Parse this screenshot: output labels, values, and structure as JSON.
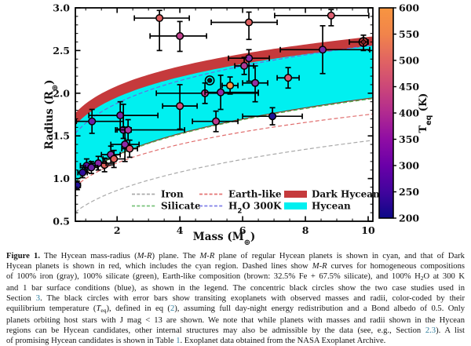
{
  "page": {
    "background": "#ffffff"
  },
  "figure": {
    "caption_link_color": "#2e7e9e",
    "caption_lines": [
      [
        {
          "t": "Figure 1.",
          "s": "b"
        },
        {
          "t": "  The Hycean mass-radius (",
          "s": "n"
        },
        {
          "t": "M",
          "s": "i"
        },
        {
          "t": "-",
          "s": "n"
        },
        {
          "t": "R",
          "s": "i"
        },
        {
          "t": ") plane.  The ",
          "s": "n"
        },
        {
          "t": "M",
          "s": "i"
        },
        {
          "t": "-",
          "s": "n"
        },
        {
          "t": "R",
          "s": "i"
        },
        {
          "t": " plane of regular Hycean planets is shown in cyan, and that of Dark",
          "s": "n"
        }
      ],
      [
        {
          "t": "Hycean planets is shown in red, which includes the cyan region.  Dashed lines show ",
          "s": "n"
        },
        {
          "t": "M",
          "s": "i"
        },
        {
          "t": "-",
          "s": "n"
        },
        {
          "t": "R",
          "s": "i"
        },
        {
          "t": " curves for homogeneous compositions",
          "s": "n"
        }
      ],
      [
        {
          "t": "of 100% iron (gray), 100% silicate (green), Earth-like composition (brown: 32.5% Fe + 67.5% silicate), and 100% H",
          "s": "n"
        },
        {
          "t": "2",
          "s": "sub"
        },
        {
          "t": "O at 300 K",
          "s": "n"
        }
      ],
      [
        {
          "t": "and 1 bar surface conditions (blue), as shown in the legend.  The concentric black circles show the two case studies used in",
          "s": "n"
        }
      ],
      [
        {
          "t": "Section ",
          "s": "n"
        },
        {
          "t": "3",
          "s": "l"
        },
        {
          "t": ".  The black circles with error bars show transiting exoplanets with observed masses and radii, color-coded by their",
          "s": "n"
        }
      ],
      [
        {
          "t": "equilibrium temperature (",
          "s": "n"
        },
        {
          "t": "T",
          "s": "i"
        },
        {
          "t": "eq",
          "s": "sub"
        },
        {
          "t": "), defined in eq (",
          "s": "n"
        },
        {
          "t": "2",
          "s": "l"
        },
        {
          "t": "), assuming full day-night energy redistribution and a Bond albedo of 0.5.  Only",
          "s": "n"
        }
      ],
      [
        {
          "t": "planets orbiting host stars with J mag < 13 are shown.  We note that while planets with masses and radii shown in the Hycean",
          "s": "n"
        }
      ],
      [
        {
          "t": "regions can be Hycean candidates, other internal structures may also be admissible by the data (see, e.g., Section ",
          "s": "n"
        },
        {
          "t": "2.3",
          "s": "l"
        },
        {
          "t": ").  A list",
          "s": "n"
        }
      ],
      [
        {
          "t": "of promising Hycean candidates is shown in Table ",
          "s": "n"
        },
        {
          "t": "1",
          "s": "l"
        },
        {
          "t": ".  Exoplanet data obtained from the NASA Exoplanet Archive.",
          "s": "n"
        }
      ]
    ]
  },
  "chart_data": {
    "type": "scatter",
    "title": "",
    "xlabel": {
      "pre": "Mass (M",
      "sub": "⊕",
      "post": ")"
    },
    "ylabel": {
      "pre": "Radius (R",
      "sub": "⊕",
      "post": ")"
    },
    "xlim": [
      0.67,
      10.15
    ],
    "ylim": [
      0.5,
      3.0
    ],
    "xticks": [
      "2",
      "4",
      "6",
      "8",
      "10"
    ],
    "xtick_values": [
      2,
      4,
      6,
      8,
      10
    ],
    "yticks": [
      "0.5",
      "1.0",
      "1.5",
      "2.0",
      "2.5",
      "3.0"
    ],
    "ytick_values": [
      0.5,
      1.0,
      1.5,
      2.0,
      2.5,
      3.0
    ],
    "grid": false,
    "frame_color": "#000000",
    "regions": [
      {
        "name": "dark-hycean",
        "color": "#c53a3c",
        "top": {
          "a": 1.878,
          "b": 0.151
        },
        "bottom": {
          "a": 1.065,
          "b": 0.26
        }
      },
      {
        "name": "hycean",
        "color": "#00f0f0",
        "top": {
          "a": 1.74,
          "b": 0.166
        },
        "bottom": {
          "a": 1.065,
          "b": 0.26
        }
      }
    ],
    "region_bottom_edge_color": "#8a3a28",
    "curves": [
      {
        "name": "iron",
        "color": "#aaaaaa",
        "a": 0.69,
        "b": 0.32
      },
      {
        "name": "silicate",
        "color": "#4faf54",
        "a": 1.06,
        "b": 0.26
      },
      {
        "name": "earth-like",
        "color": "#e06c6c",
        "a": 1.0,
        "b": 0.243
      },
      {
        "name": "h2o-300k",
        "color": "#6b6be0",
        "a": 1.65,
        "b": 0.19
      }
    ],
    "points": [
      {
        "m": 3.35,
        "r": 2.88,
        "c": "#e05f60",
        "xm": 0.8,
        "xp": 0.95,
        "rm": 0.38,
        "rp": 0.09
      },
      {
        "m": 4.0,
        "r": 2.67,
        "c": "#c2408e",
        "xm": 0.95,
        "xp": 0.85,
        "rm": 0.18,
        "rp": 0.17
      },
      {
        "m": 6.2,
        "r": 2.83,
        "c": "#e05f60",
        "xm": 1.2,
        "xp": 0.9,
        "rm": 0.2,
        "rp": 0.12
      },
      {
        "m": 8.82,
        "r": 2.91,
        "c": "#df5f72",
        "xm": 1.8,
        "xp": 1.2,
        "rm": 0.12,
        "rp": 0.07
      },
      {
        "m": 8.55,
        "r": 2.51,
        "c": "#7a28a6",
        "xm": 1.35,
        "xp": 1.5,
        "rm": 0.28,
        "rp": 0.28
      },
      {
        "m": 9.85,
        "r": 2.6,
        "c": "#7a1f25",
        "cs": true,
        "xm": 0.45,
        "xp": 0.15,
        "rm": 0.1,
        "rp": 0.08
      },
      {
        "m": 6.2,
        "r": 2.41,
        "c": "#8a2da8",
        "xm": 0.65,
        "xp": 0.65,
        "rm": 0.27,
        "rp": 0.1
      },
      {
        "m": 6.05,
        "r": 2.32,
        "c": "#b03a95",
        "xm": 0.3,
        "xp": 0.3,
        "rm": 0.1,
        "rp": 0.1
      },
      {
        "m": 7.45,
        "r": 2.18,
        "c": "#d85570",
        "xm": 0.35,
        "xp": 0.35,
        "rm": 0.12,
        "rp": 0.12
      },
      {
        "m": 6.4,
        "r": 2.12,
        "c": "#9030a2",
        "xm": 0.4,
        "xp": 0.4,
        "rm": 0.22,
        "rp": 0.2
      },
      {
        "m": 5.6,
        "r": 2.09,
        "c": "#f89540",
        "xm": 0.25,
        "xp": 0.25,
        "rm": 0.1,
        "rp": 0.1
      },
      {
        "m": 4.95,
        "r": 2.15,
        "c": "#111111",
        "cs": true,
        "xm": 0,
        "xp": 0,
        "rm": 0,
        "rp": 0
      },
      {
        "m": 4.8,
        "r": 2.0,
        "c": "#b83d90",
        "xm": 1.55,
        "xp": 1.7,
        "rm": 0.12,
        "rp": 0.12
      },
      {
        "m": 5.3,
        "r": 2.01,
        "c": "#8d2ba6",
        "xm": 0.5,
        "xp": 1.2,
        "rm": 0.2,
        "rp": 0.2
      },
      {
        "m": 4.0,
        "r": 1.85,
        "c": "#d14b7d",
        "xm": 0.55,
        "xp": 0.55,
        "rm": 0.27,
        "rp": 0.25
      },
      {
        "m": 5.15,
        "r": 1.67,
        "c": "#bb3d8d",
        "xm": 0.75,
        "xp": 0.7,
        "rm": 0.12,
        "rp": 0.12
      },
      {
        "m": 6.95,
        "r": 1.73,
        "c": "#221496",
        "xm": 0.95,
        "xp": 0.95,
        "rm": 0.1,
        "rp": 0.1
      },
      {
        "m": 1.2,
        "r": 1.67,
        "c": "#6a1fa2",
        "xm": 0.5,
        "xp": 1.0,
        "rm": 0.14,
        "rp": 0.14
      },
      {
        "m": 2.1,
        "r": 1.74,
        "c": "#7a25a5",
        "xm": 1.0,
        "xp": 1.2,
        "rm": 0.16,
        "rp": 0.16
      },
      {
        "m": 2.2,
        "r": 1.57,
        "c": "#8828a8",
        "xm": 0.25,
        "xp": 0.25,
        "rm": 0.1,
        "rp": 0.3
      },
      {
        "m": 2.35,
        "r": 1.57,
        "c": "#a835a0",
        "xm": 0.35,
        "xp": 1.8,
        "rm": 0.12,
        "rp": 0.12
      },
      {
        "m": 2.25,
        "r": 1.4,
        "c": "#8d2ba6",
        "xm": 0.45,
        "xp": 0.45,
        "rm": 0.2,
        "rp": 0.2
      },
      {
        "m": 2.4,
        "r": 1.35,
        "c": "#d85570",
        "xm": 0.25,
        "xp": 0.25,
        "rm": 0.1,
        "rp": 0.1
      },
      {
        "m": 1.8,
        "r": 1.28,
        "c": "#9030a2",
        "xm": 0.3,
        "xp": 0.3,
        "rm": 0.1,
        "rp": 0.1
      },
      {
        "m": 1.9,
        "r": 1.23,
        "c": "#e0605c",
        "xm": 0.35,
        "xp": 0.35,
        "rm": 0.1,
        "rp": 0.1
      },
      {
        "m": 1.6,
        "r": 1.16,
        "c": "#e2625c",
        "xm": 0.3,
        "xp": 0.3,
        "rm": 0.08,
        "rp": 0.08
      },
      {
        "m": 1.4,
        "r": 1.18,
        "c": "#8828a8",
        "xm": 0.25,
        "xp": 0.25,
        "rm": 0.08,
        "rp": 0.08
      },
      {
        "m": 1.03,
        "r": 1.15,
        "c": "#5a14a0",
        "xm": 0.2,
        "xp": 0.2,
        "rm": 0.08,
        "rp": 0.08
      },
      {
        "m": 1.18,
        "r": 1.13,
        "c": "#6a1fa2",
        "xm": 0.2,
        "xp": 0.2,
        "rm": 0.07,
        "rp": 0.07
      },
      {
        "m": 0.9,
        "r": 1.07,
        "c": "#2d0f9a",
        "xm": 0.15,
        "xp": 0.15,
        "rm": 0.06,
        "rp": 0.06
      },
      {
        "m": 0.73,
        "r": 0.92,
        "c": "#23109b",
        "xm": 0.1,
        "xp": 0.1,
        "rm": 0.05,
        "rp": 0.05
      }
    ],
    "legend": {
      "position": "lower-right-inside",
      "curve_entries": [
        {
          "label": "Iron",
          "color": "#aaaaaa"
        },
        {
          "label": "Silicate",
          "color": "#77c27a"
        },
        {
          "label": "Earth-like",
          "color": "#e57373"
        },
        {
          "label": "H2O 300K",
          "color": "#8080e8",
          "parts": {
            "pre": "H",
            "sub": "2",
            "post": "O 300K"
          }
        }
      ],
      "patch_entries": [
        {
          "label": "Dark Hycean",
          "color": "#c53a3c"
        },
        {
          "label": "Hycean",
          "color": "#00f0f0"
        }
      ]
    },
    "colorbar": {
      "label": {
        "pre": "T",
        "sub": "eq",
        "post": " (K)"
      },
      "tick_values": [
        200,
        250,
        300,
        350,
        400,
        450,
        500,
        550,
        600
      ],
      "stops": [
        "#0d0887",
        "#41049d",
        "#6a00a8",
        "#8f0da4",
        "#b12a90",
        "#cc4778",
        "#e16462",
        "#f1844b",
        "#f89540"
      ]
    }
  }
}
